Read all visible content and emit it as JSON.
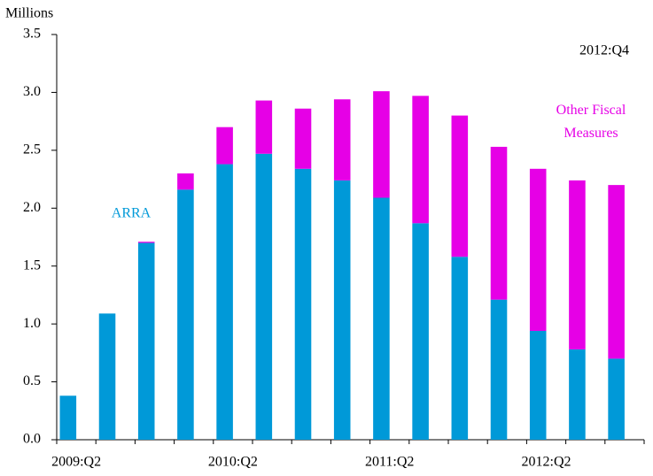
{
  "chart_data": {
    "type": "bar",
    "stacked": true,
    "y_unit_label": "Millions",
    "annotation": "2012:Q4",
    "categories": [
      "2009:Q2",
      null,
      null,
      null,
      "2010:Q2",
      null,
      null,
      null,
      "2011:Q2",
      null,
      null,
      null,
      "2012:Q2",
      null,
      null
    ],
    "series": [
      {
        "name": "ARRA",
        "color": "#0099d8",
        "values": [
          0.38,
          1.09,
          1.7,
          2.16,
          2.38,
          2.47,
          2.34,
          2.24,
          2.09,
          1.87,
          1.58,
          1.21,
          0.94,
          0.78,
          0.7
        ]
      },
      {
        "name": "Other Fiscal Measures",
        "color": "#e600e6",
        "values": [
          0,
          0,
          0.01,
          0.14,
          0.32,
          0.46,
          0.52,
          0.7,
          0.92,
          1.1,
          1.22,
          1.32,
          1.4,
          1.46,
          1.5
        ]
      }
    ],
    "ylim": [
      0,
      3.5
    ],
    "yticks": [
      {
        "value": 0,
        "label": "0.0"
      },
      0.5,
      {
        "value": 1,
        "label": "1.0"
      },
      1.5,
      {
        "value": 2,
        "label": "2.0"
      },
      2.5,
      {
        "value": 3,
        "label": "3.0"
      },
      3.5
    ],
    "grid": false
  }
}
